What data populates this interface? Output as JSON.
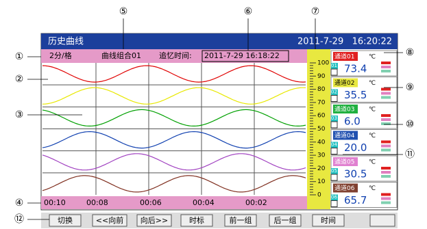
{
  "header": {
    "title": "历史曲线",
    "datetime": "2011-7-29   16:20:22"
  },
  "info_bar": {
    "interval": "2分/格",
    "group": "曲线组合01",
    "recall_label": "追忆时间:",
    "recall_time": "2011-7-29 16:18:22"
  },
  "scale": [
    "100",
    "90",
    "80",
    "70",
    "60",
    "50",
    "40",
    "30",
    "20",
    "10",
    "0"
  ],
  "time_labels": [
    "00:10",
    "00:08",
    "00:06",
    "00:04",
    "00:02"
  ],
  "channels": [
    {
      "name": "通道01",
      "unit": "℃",
      "index": "01",
      "value": "73.4"
    },
    {
      "name": "通道02",
      "unit": "℃",
      "index": "02",
      "value": "35.5"
    },
    {
      "name": "通道03",
      "unit": "℃",
      "index": "03",
      "value": "6.0"
    },
    {
      "name": "通道04",
      "unit": "℃",
      "index": "04",
      "value": "20.0"
    },
    {
      "name": "通道05",
      "unit": "℃",
      "index": "05",
      "value": "30.5"
    },
    {
      "name": "通道06",
      "unit": "℃",
      "index": "06",
      "value": "65.7"
    }
  ],
  "buttons": [
    "切换",
    "<<向前",
    "向后>>",
    "时标",
    "前一组",
    "后一组",
    "时间"
  ],
  "callouts": [
    "①",
    "②",
    "③",
    "④",
    "⑤",
    "⑥",
    "⑦",
    "⑧",
    "⑨",
    "⑩",
    "⑪",
    "⑫"
  ]
}
